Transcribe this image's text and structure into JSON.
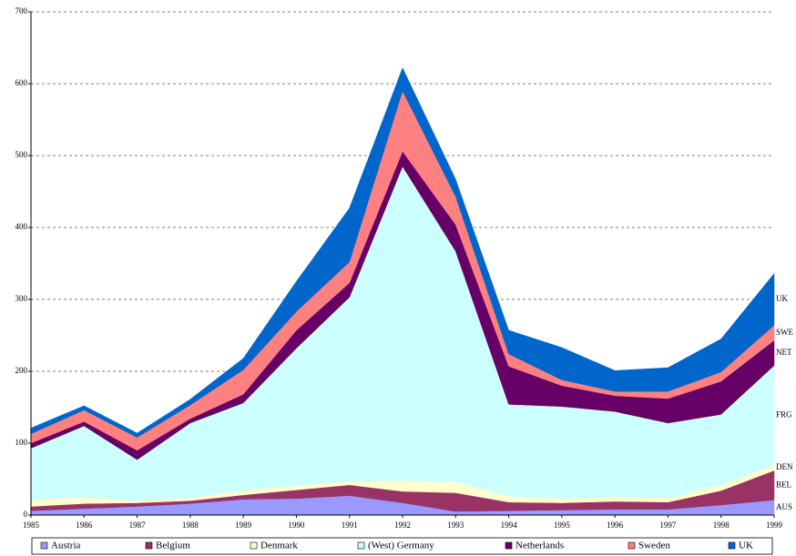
{
  "chart_data": {
    "type": "stacked_area",
    "categories": [
      "1985",
      "1986",
      "1987",
      "1988",
      "1989",
      "1990",
      "1991",
      "1992",
      "1993",
      "1994",
      "1995",
      "1996",
      "1997",
      "1998",
      "1999"
    ],
    "ylim": [
      0,
      700
    ],
    "yticks": [
      0,
      100,
      200,
      300,
      400,
      500,
      600,
      700
    ],
    "grid": true,
    "legend": "bottom",
    "series": [
      {
        "name": "Austria",
        "end_label": "AUS",
        "color": "#9999ff",
        "values": [
          6,
          9,
          12,
          16,
          22,
          23,
          27,
          17,
          5,
          6,
          7,
          8,
          8,
          14,
          21
        ]
      },
      {
        "name": "Belgium",
        "end_label": "BEL",
        "color": "#993366",
        "values": [
          6,
          7,
          5,
          4,
          6,
          12,
          15,
          16,
          26,
          12,
          10,
          11,
          10,
          20,
          41
        ]
      },
      {
        "name": "Denmark",
        "end_label": "DEN",
        "color": "#ffffcc",
        "values": [
          8,
          9,
          3,
          4,
          6,
          6,
          5,
          15,
          15,
          8,
          6,
          6,
          6,
          8,
          8
        ]
      },
      {
        "name": "(West) Germany",
        "end_label": "FRG",
        "color": "#ccffff",
        "values": [
          73,
          99,
          57,
          104,
          122,
          191,
          256,
          437,
          321,
          128,
          128,
          119,
          104,
          98,
          138
        ]
      },
      {
        "name": "Netherlands",
        "end_label": "NET",
        "color": "#660066",
        "values": [
          7,
          6,
          13,
          6,
          12,
          25,
          20,
          21,
          37,
          53,
          29,
          22,
          34,
          46,
          35
        ]
      },
      {
        "name": "Sweden",
        "end_label": "SWE",
        "color": "#ff8080",
        "values": [
          13,
          16,
          18,
          19,
          34,
          26,
          29,
          84,
          39,
          17,
          8,
          6,
          10,
          13,
          21
        ]
      },
      {
        "name": "UK",
        "end_label": "UK",
        "color": "#0066cc",
        "values": [
          8,
          6,
          6,
          8,
          16,
          42,
          75,
          32,
          24,
          33,
          45,
          29,
          33,
          46,
          72
        ]
      }
    ]
  }
}
